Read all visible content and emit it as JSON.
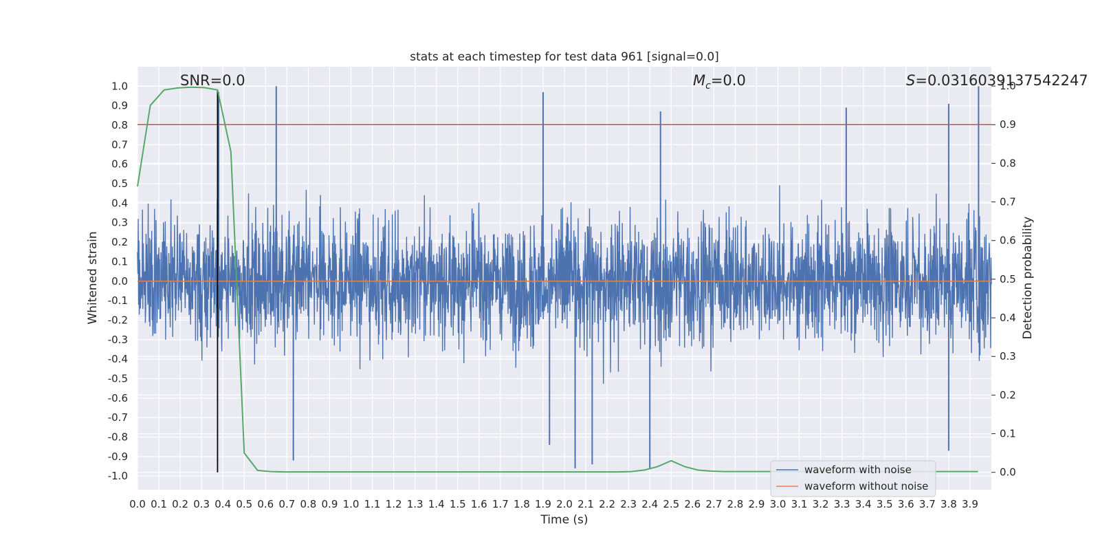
{
  "chart_data": {
    "type": "line",
    "title": "stats at each timestep for test data 961 [signal=0.0]",
    "xlabel": "Time (s)",
    "ylabel": "Whitened strain",
    "y2label": "Detection probability",
    "xlim": [
      0.0,
      4.0
    ],
    "ylim": [
      -1.07,
      1.1
    ],
    "y2lim": [
      -0.045,
      1.05
    ],
    "x_ticks": [
      "0.0",
      "0.1",
      "0.2",
      "0.3",
      "0.4",
      "0.5",
      "0.6",
      "0.7",
      "0.8",
      "0.9",
      "1.0",
      "1.1",
      "1.2",
      "1.3",
      "1.4",
      "1.5",
      "1.6",
      "1.7",
      "1.8",
      "1.9",
      "2.0",
      "2.1",
      "2.2",
      "2.3",
      "2.4",
      "2.5",
      "2.6",
      "2.7",
      "2.8",
      "2.9",
      "3.0",
      "3.1",
      "3.2",
      "3.3",
      "3.4",
      "3.5",
      "3.6",
      "3.7",
      "3.8",
      "3.9"
    ],
    "y_ticks": [
      "1.0",
      "0.9",
      "0.8",
      "0.7",
      "0.6",
      "0.5",
      "0.4",
      "0.3",
      "0.2",
      "0.1",
      "0.0",
      "-0.1",
      "-0.2",
      "-0.3",
      "-0.4",
      "-0.5",
      "-0.6",
      "-0.7",
      "-0.8",
      "-0.9",
      "-1.0"
    ],
    "y2_ticks": [
      "1.0",
      "0.9",
      "0.8",
      "0.7",
      "0.6",
      "0.5",
      "0.4",
      "0.3",
      "0.2",
      "0.1",
      "0.0"
    ],
    "grid": true,
    "annotations": {
      "snr": "SNR=0.0",
      "mc_symbol": "M",
      "mc_sub": "c",
      "mc_value": "=0.0",
      "s_symbol": "S",
      "s_value": "=0.0316039137542247"
    },
    "threshold_y2": 0.9,
    "event_time_x": 0.375,
    "series": [
      {
        "name": "waveform with noise",
        "color": "#4c72b0",
        "description_type": "dense noise",
        "amplitude_envelope": 0.5,
        "peaks": [
          [
            0.65,
            1.0
          ],
          [
            3.94,
            1.0
          ],
          [
            1.9,
            0.97
          ],
          [
            0.38,
            0.97
          ],
          [
            2.45,
            0.87
          ],
          [
            3.32,
            0.89
          ],
          [
            3.8,
            0.91
          ],
          [
            2.05,
            -0.96
          ],
          [
            2.13,
            -0.94
          ],
          [
            0.73,
            -0.92
          ],
          [
            1.93,
            -0.84
          ],
          [
            3.8,
            -0.87
          ],
          [
            2.4,
            -0.96
          ]
        ]
      },
      {
        "name": "waveform without noise",
        "color": "#dd8452",
        "constant": 0.0
      },
      {
        "name": "",
        "axis": "y2",
        "color": "#55a868",
        "x": [
          0.0,
          0.06,
          0.125,
          0.1875,
          0.25,
          0.3125,
          0.375,
          0.4375,
          0.5,
          0.5625,
          0.625,
          0.6875,
          0.75,
          1.0,
          1.5,
          2.0,
          2.25,
          2.3125,
          2.375,
          2.4375,
          2.5,
          2.5625,
          2.625,
          2.6875,
          2.75,
          3.0,
          3.5,
          3.9375
        ],
        "y": [
          0.74,
          0.95,
          0.99,
          0.995,
          0.997,
          0.996,
          0.99,
          0.83,
          0.05,
          0.005,
          0.002,
          0.001,
          0.001,
          0.001,
          0.001,
          0.001,
          0.001,
          0.002,
          0.006,
          0.015,
          0.03,
          0.015,
          0.006,
          0.003,
          0.002,
          0.002,
          0.002,
          0.002
        ]
      }
    ],
    "legend": {
      "position": "lower-right",
      "entries": [
        "waveform with noise",
        "waveform without noise"
      ]
    }
  }
}
